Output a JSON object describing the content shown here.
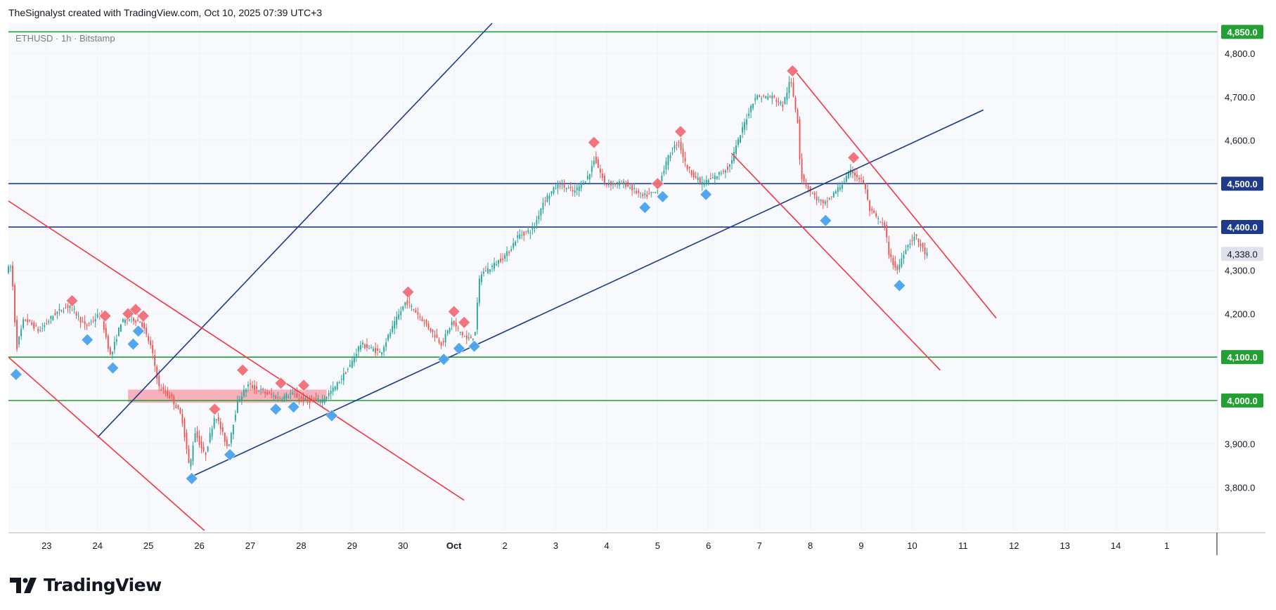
{
  "header": {
    "caption": "TheSignalyst created with TradingView.com, Oct 10, 2025 07:39 UTC+3"
  },
  "symbol": {
    "label": "ETHUSD · 1h · Bitstamp"
  },
  "footer": {
    "brand": "TradingView",
    "logo_icon": "tradingview-logo-icon"
  },
  "colors": {
    "up": "#26a69a",
    "down": "#ef5350",
    "blue_line": "#1e3a8a",
    "red_line": "#f23645",
    "green_line": "#22a033",
    "plot_bg": "#f8f9fd",
    "zone": "#f7a4b0",
    "top_marker": "#f26d78",
    "bottom_marker": "#4aa3f0"
  },
  "chart_data": {
    "type": "candlestick",
    "ylim": [
      3700,
      4870
    ],
    "x_range": [
      22.25,
      46.0
    ],
    "x_ticks": [
      {
        "x": 23,
        "label": "23"
      },
      {
        "x": 24,
        "label": "24"
      },
      {
        "x": 25,
        "label": "25"
      },
      {
        "x": 26,
        "label": "26"
      },
      {
        "x": 27,
        "label": "27"
      },
      {
        "x": 28,
        "label": "28"
      },
      {
        "x": 29,
        "label": "29"
      },
      {
        "x": 30,
        "label": "30"
      },
      {
        "x": 31,
        "label": "Oct"
      },
      {
        "x": 32,
        "label": "2"
      },
      {
        "x": 33,
        "label": "3"
      },
      {
        "x": 34,
        "label": "4"
      },
      {
        "x": 35,
        "label": "5"
      },
      {
        "x": 36,
        "label": "6"
      },
      {
        "x": 37,
        "label": "7"
      },
      {
        "x": 38,
        "label": "8"
      },
      {
        "x": 39,
        "label": "9"
      },
      {
        "x": 40,
        "label": "10"
      },
      {
        "x": 41,
        "label": "11"
      },
      {
        "x": 42,
        "label": "12"
      },
      {
        "x": 43,
        "label": "13"
      },
      {
        "x": 44,
        "label": "14"
      },
      {
        "x": 45,
        "label": "1"
      }
    ],
    "y_ticks": [
      {
        "v": 3800,
        "label": "3,800.0"
      },
      {
        "v": 3900,
        "label": "3,900.0"
      },
      {
        "v": 4200,
        "label": "4,200.0"
      },
      {
        "v": 4300,
        "label": "4,300.0"
      },
      {
        "v": 4600,
        "label": "4,600.0"
      },
      {
        "v": 4700,
        "label": "4,700.0"
      },
      {
        "v": 4800,
        "label": "4,800.0"
      }
    ],
    "price_badges": [
      {
        "v": 4850,
        "label": "4,850.0",
        "color": "green"
      },
      {
        "v": 4500,
        "label": "4,500.0",
        "color": "blue"
      },
      {
        "v": 4400,
        "label": "4,400.0",
        "color": "blue"
      },
      {
        "v": 4338,
        "label": "4,338.0",
        "color": "current"
      },
      {
        "v": 4100,
        "label": "4,100.0",
        "color": "green"
      },
      {
        "v": 4000,
        "label": "4,000.0",
        "color": "green"
      }
    ],
    "horizontal_levels": [
      {
        "v": 4850,
        "color": "green"
      },
      {
        "v": 4500,
        "color": "blue"
      },
      {
        "v": 4400,
        "color": "blue"
      },
      {
        "v": 4100,
        "color": "green"
      },
      {
        "v": 4000,
        "color": "green"
      }
    ],
    "trend_lines": [
      {
        "color": "blue",
        "from": [
          24.0,
          3915
        ],
        "to": [
          31.75,
          4870
        ]
      },
      {
        "color": "blue",
        "from": [
          25.8,
          3822
        ],
        "to": [
          41.4,
          4670
        ]
      },
      {
        "color": "red",
        "from": [
          22.25,
          4460
        ],
        "to": [
          31.2,
          3770
        ]
      },
      {
        "color": "red",
        "from": [
          22.25,
          4100
        ],
        "to": [
          26.1,
          3700
        ]
      },
      {
        "color": "red",
        "from": [
          36.45,
          4570
        ],
        "to": [
          40.55,
          4070
        ]
      },
      {
        "color": "red",
        "from": [
          37.7,
          4760
        ],
        "to": [
          41.65,
          4190
        ]
      }
    ],
    "zones": [
      {
        "x": [
          24.6,
          28.5
        ],
        "y": [
          3995,
          4025
        ]
      }
    ],
    "tops": [
      [
        23.5,
        4230
      ],
      [
        24.15,
        4195
      ],
      [
        24.6,
        4200
      ],
      [
        24.75,
        4210
      ],
      [
        24.9,
        4195
      ],
      [
        26.3,
        3980
      ],
      [
        26.85,
        4070
      ],
      [
        27.6,
        4040
      ],
      [
        28.05,
        4035
      ],
      [
        30.1,
        4250
      ],
      [
        31.0,
        4205
      ],
      [
        31.2,
        4180
      ],
      [
        33.75,
        4595
      ],
      [
        35.0,
        4500
      ],
      [
        35.45,
        4620
      ],
      [
        37.65,
        4760
      ],
      [
        38.85,
        4560
      ]
    ],
    "bottoms": [
      [
        22.4,
        4060
      ],
      [
        23.8,
        4140
      ],
      [
        24.3,
        4075
      ],
      [
        24.7,
        4130
      ],
      [
        24.8,
        4160
      ],
      [
        25.85,
        3820
      ],
      [
        26.6,
        3875
      ],
      [
        27.5,
        3980
      ],
      [
        27.85,
        3985
      ],
      [
        28.6,
        3965
      ],
      [
        30.8,
        4095
      ],
      [
        31.1,
        4120
      ],
      [
        31.4,
        4125
      ],
      [
        34.75,
        4445
      ],
      [
        35.1,
        4470
      ],
      [
        35.95,
        4475
      ],
      [
        38.3,
        4415
      ],
      [
        39.75,
        4265
      ]
    ],
    "price_path": [
      [
        22.25,
        4300
      ],
      [
        22.35,
        4310
      ],
      [
        22.45,
        4120
      ],
      [
        22.6,
        4190
      ],
      [
        22.9,
        4160
      ],
      [
        23.2,
        4200
      ],
      [
        23.5,
        4220
      ],
      [
        23.8,
        4170
      ],
      [
        24.1,
        4200
      ],
      [
        24.3,
        4100
      ],
      [
        24.5,
        4180
      ],
      [
        24.7,
        4190
      ],
      [
        24.9,
        4180
      ],
      [
        25.1,
        4120
      ],
      [
        25.25,
        4030
      ],
      [
        25.5,
        4005
      ],
      [
        25.7,
        3960
      ],
      [
        25.85,
        3840
      ],
      [
        25.95,
        3930
      ],
      [
        26.15,
        3870
      ],
      [
        26.35,
        3970
      ],
      [
        26.6,
        3890
      ],
      [
        26.8,
        4000
      ],
      [
        27.0,
        4035
      ],
      [
        27.3,
        4020
      ],
      [
        27.6,
        4005
      ],
      [
        27.85,
        4015
      ],
      [
        28.1,
        4000
      ],
      [
        28.45,
        4000
      ],
      [
        28.7,
        4030
      ],
      [
        29.0,
        4080
      ],
      [
        29.2,
        4130
      ],
      [
        29.6,
        4110
      ],
      [
        29.8,
        4160
      ],
      [
        30.1,
        4230
      ],
      [
        30.4,
        4190
      ],
      [
        30.8,
        4130
      ],
      [
        31.0,
        4180
      ],
      [
        31.3,
        4140
      ],
      [
        31.45,
        4150
      ],
      [
        31.55,
        4290
      ],
      [
        31.8,
        4310
      ],
      [
        32.1,
        4340
      ],
      [
        32.3,
        4380
      ],
      [
        32.6,
        4395
      ],
      [
        32.8,
        4460
      ],
      [
        33.1,
        4500
      ],
      [
        33.4,
        4480
      ],
      [
        33.7,
        4520
      ],
      [
        33.8,
        4560
      ],
      [
        34.0,
        4500
      ],
      [
        34.4,
        4500
      ],
      [
        34.75,
        4470
      ],
      [
        35.0,
        4480
      ],
      [
        35.25,
        4560
      ],
      [
        35.45,
        4600
      ],
      [
        35.6,
        4540
      ],
      [
        35.9,
        4500
      ],
      [
        36.1,
        4510
      ],
      [
        36.45,
        4540
      ],
      [
        36.75,
        4640
      ],
      [
        36.95,
        4700
      ],
      [
        37.3,
        4700
      ],
      [
        37.5,
        4680
      ],
      [
        37.65,
        4740
      ],
      [
        37.8,
        4640
      ],
      [
        37.85,
        4520
      ],
      [
        38.05,
        4480
      ],
      [
        38.3,
        4450
      ],
      [
        38.6,
        4490
      ],
      [
        38.85,
        4530
      ],
      [
        39.1,
        4500
      ],
      [
        39.2,
        4440
      ],
      [
        39.5,
        4400
      ],
      [
        39.6,
        4330
      ],
      [
        39.75,
        4300
      ],
      [
        39.9,
        4350
      ],
      [
        40.1,
        4380
      ],
      [
        40.3,
        4338
      ]
    ]
  }
}
